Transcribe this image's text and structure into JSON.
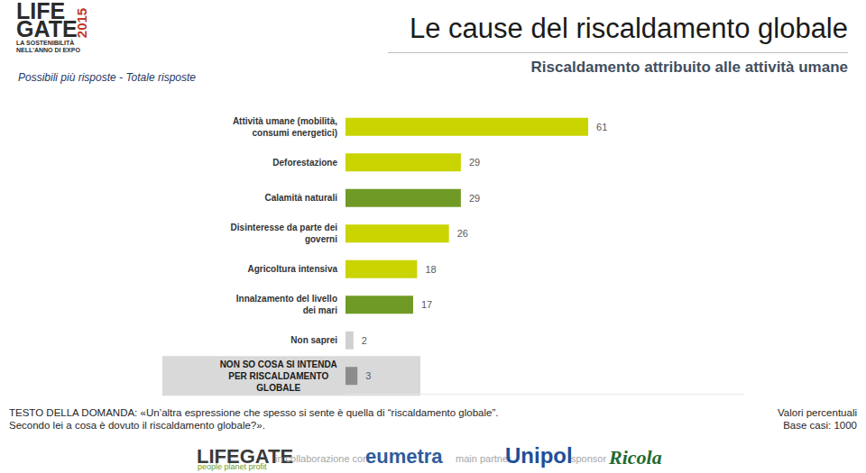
{
  "chart_data": {
    "type": "bar",
    "orientation": "horizontal",
    "title": "Le cause del riscaldamento globale",
    "subtitle": "Riscaldamento attribuito alle attività umane",
    "categories": [
      "Attività umane (mobilità,\nconsumi energetici)",
      "Deforestazione",
      "Calamità naturali",
      "Disinteresse da parte dei\ngoverni",
      "Agricoltura intensiva",
      "Innalzamento del livello\ndei mari",
      "Non saprei",
      "NON SO COSA SI INTENDA\nPER RISCALDAMENTO\nGLOBALE"
    ],
    "values": [
      61,
      29,
      29,
      26,
      18,
      17,
      2,
      3
    ],
    "colors": [
      "#c9d400",
      "#c9d400",
      "#6f9a26",
      "#c9d400",
      "#c9d400",
      "#6f9a26",
      "#d0d0d0",
      "#8c8c8c"
    ],
    "xlim": [
      0,
      100
    ],
    "data_labels": true,
    "tick_labels": false,
    "grid": false
  },
  "header": {
    "note": "Possibili più risposte - Totale risposte",
    "logo": [
      "LIFE",
      "GATE",
      "2015",
      "LA SOSTENIBILITÀ",
      "NELL'ANNO DI EXPO"
    ]
  },
  "footer": {
    "question": [
      "TESTO DELLA DOMANDA: «Un’altra espressione che spesso si sente è quella di “riscaldamento globale”.",
      "Secondo lei a cosa è dovuto il riscaldamento globale?»."
    ],
    "values_note": "Valori percentuali",
    "base": "Base casi: 1000",
    "sponsors": [
      "LIFEGATE",
      "people planet profit",
      "in collaborazione con",
      "eumetra",
      "main partner",
      "Unipol",
      "sponsor",
      "Ricola"
    ]
  }
}
